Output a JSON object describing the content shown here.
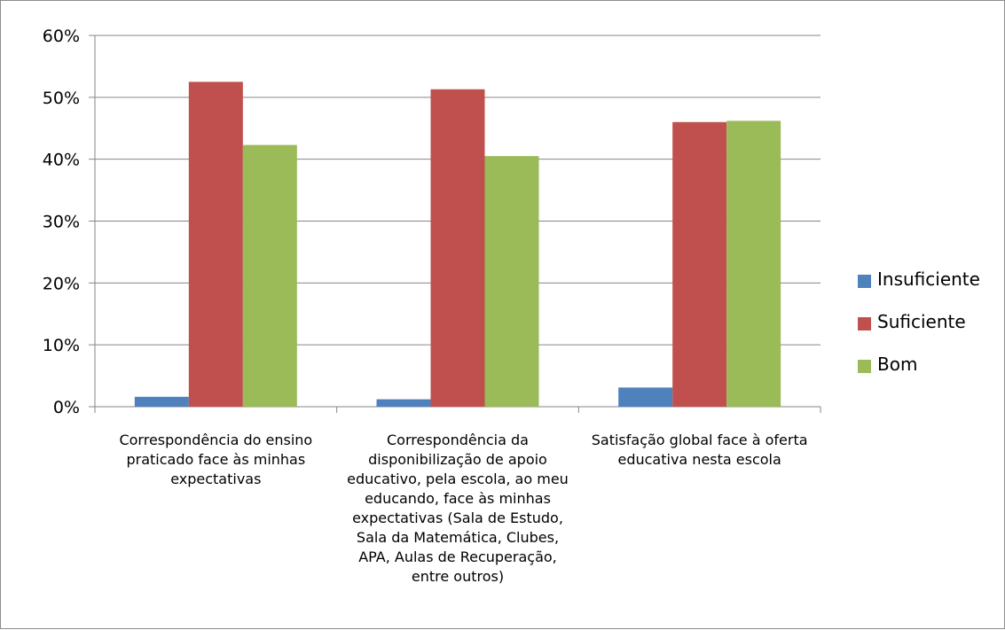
{
  "chart_data": {
    "type": "bar",
    "categories": [
      "Correspondência do ensino\npraticado face às minhas\nexpectativas",
      "Correspondência da\ndisponibilização de apoio\neducativo, pela escola, ao meu\neducando, face às minhas\nexpectativas (Sala de Estudo,\nSala da Matemática, Clubes,\nAPA, Aulas de Recuperação,\nentre outros)",
      "Satisfação global face à oferta\neducativa nesta escola"
    ],
    "series": [
      {
        "name": "Insuficiente",
        "color": "#4f81bd",
        "values": [
          1.6,
          1.2,
          3.1
        ]
      },
      {
        "name": "Suficiente",
        "color": "#c0504d",
        "values": [
          52.5,
          51.3,
          46.0
        ]
      },
      {
        "name": "Bom",
        "color": "#9bbb59",
        "values": [
          42.3,
          40.5,
          46.2
        ]
      }
    ],
    "y_ticks": [
      "0%",
      "10%",
      "20%",
      "30%",
      "40%",
      "50%",
      "60%"
    ],
    "ylim": [
      0,
      60
    ],
    "y_unit": "%",
    "grid": true,
    "legend_position": "right",
    "gridline_color": "#868686"
  }
}
